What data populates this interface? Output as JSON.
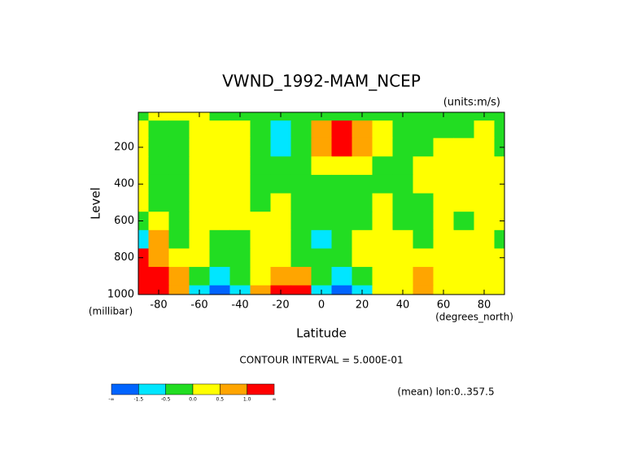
{
  "chart_data": {
    "type": "contourf",
    "title": "VWND_1992-MAM_NCEP",
    "units": "(units:m/s)",
    "ylabel": "Level",
    "yunit": "(millibar)",
    "xlabel": "Latitude",
    "xunit": "(degrees_north)",
    "contour_note": "CONTOUR INTERVAL = 5.000E-01",
    "footer": "(mean) lon:0..357.5",
    "xlim": [
      -90,
      90
    ],
    "xticks": [
      -80,
      -60,
      -40,
      -20,
      0,
      20,
      40,
      60,
      80
    ],
    "ylim": [
      1000,
      10
    ],
    "yticks": [
      200,
      400,
      600,
      800,
      1000
    ],
    "field": {
      "lat": [
        -90,
        -80,
        -70,
        -60,
        -50,
        -40,
        -30,
        -20,
        -10,
        0,
        10,
        20,
        30,
        40,
        50,
        60,
        70,
        80,
        90
      ],
      "levels": [
        10,
        100,
        200,
        300,
        400,
        500,
        600,
        700,
        800,
        900,
        1000
      ],
      "values": [
        [
          -0.2,
          0.2,
          0.2,
          0.2,
          -0.2,
          -0.2,
          -0.2,
          -0.2,
          -0.2,
          -0.2,
          -0.2,
          -0.2,
          -0.2,
          -0.2,
          -0.2,
          -0.2,
          -0.2,
          -0.2,
          -0.2
        ],
        [
          0.2,
          -0.2,
          -0.2,
          0.2,
          0.2,
          0.2,
          -0.2,
          -0.7,
          -0.2,
          0.7,
          1.2,
          0.7,
          0.2,
          -0.2,
          -0.2,
          -0.2,
          -0.2,
          0.2,
          -0.2
        ],
        [
          0.2,
          -0.2,
          -0.2,
          0.2,
          0.2,
          0.2,
          -0.2,
          -0.7,
          -0.2,
          0.6,
          1.1,
          0.6,
          0.2,
          -0.2,
          -0.2,
          0.2,
          0.2,
          0.2,
          -0.2
        ],
        [
          0.2,
          -0.2,
          -0.2,
          0.2,
          0.2,
          0.2,
          -0.2,
          -0.3,
          -0.2,
          0.2,
          0.3,
          0.2,
          -0.2,
          -0.2,
          0.2,
          0.2,
          0.2,
          0.2,
          0.2
        ],
        [
          0.2,
          -0.2,
          -0.2,
          0.2,
          0.2,
          0.2,
          -0.2,
          -0.2,
          -0.2,
          -0.2,
          -0.2,
          -0.2,
          -0.2,
          -0.2,
          0.2,
          0.2,
          0.2,
          0.2,
          0.2
        ],
        [
          0.2,
          -0.2,
          -0.2,
          0.2,
          0.2,
          0.2,
          -0.2,
          0.2,
          -0.2,
          -0.2,
          -0.2,
          -0.2,
          0.2,
          -0.2,
          -0.2,
          0.2,
          0.2,
          0.2,
          0.2
        ],
        [
          -0.2,
          0.2,
          -0.2,
          0.2,
          0.2,
          0.2,
          0.2,
          0.2,
          -0.2,
          -0.2,
          -0.2,
          -0.2,
          0.2,
          -0.2,
          -0.2,
          0.2,
          -0.2,
          0.2,
          0.2
        ],
        [
          -0.7,
          0.6,
          -0.2,
          0.2,
          -0.2,
          -0.2,
          0.2,
          0.2,
          -0.2,
          -0.6,
          -0.2,
          0.2,
          0.2,
          0.2,
          -0.2,
          0.2,
          0.2,
          0.2,
          -0.2
        ],
        [
          1.2,
          0.7,
          0.2,
          0.2,
          -0.2,
          -0.2,
          0.2,
          0.2,
          -0.2,
          -0.2,
          -0.2,
          0.2,
          0.2,
          0.2,
          0.2,
          0.2,
          0.2,
          0.2,
          0.2
        ],
        [
          1.2,
          1.1,
          0.6,
          -0.2,
          -0.7,
          -0.2,
          0.2,
          0.7,
          0.7,
          -0.2,
          -0.7,
          -0.2,
          0.2,
          0.2,
          0.6,
          0.2,
          0.2,
          0.2,
          0.2
        ],
        [
          1.2,
          1.6,
          0.6,
          -0.7,
          -1.6,
          -0.7,
          0.6,
          1.6,
          1.1,
          -0.7,
          -1.6,
          -0.7,
          0.2,
          0.2,
          0.6,
          0.2,
          0.2,
          0.2,
          0.2
        ]
      ]
    },
    "colorbar": {
      "colors": [
        "#0064ff",
        "#00e6ff",
        "#22dd22",
        "#ffff00",
        "#ffa500",
        "#ff0000"
      ],
      "boundaries": [
        {
          "label": "-∞"
        },
        -1.5,
        -0.5,
        {
          "value": 0,
          "label": "0.0"
        },
        0.5,
        {
          "value": 1,
          "label": "1.0"
        },
        {
          "label": "∞"
        }
      ]
    }
  }
}
